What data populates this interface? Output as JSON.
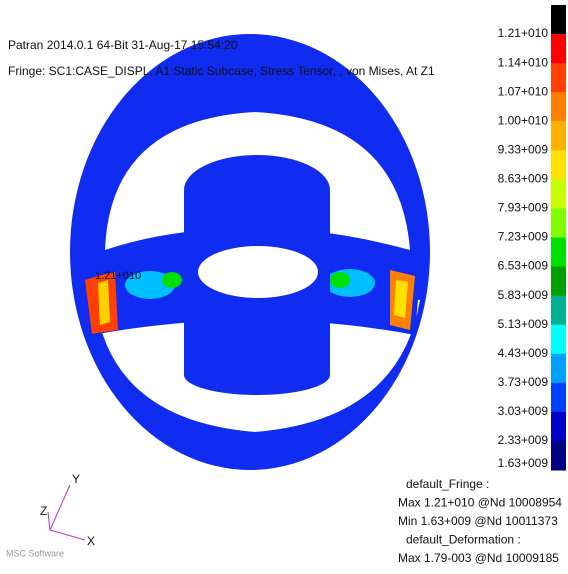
{
  "header": {
    "line1": "Patran 2014.0.1 64-Bit 31-Aug-17 15:54:20",
    "line2": "Fringe: SC1:CASE_DISPL, A1:Static Subcase, Stress Tensor, , von Mises, At Z1"
  },
  "legend": {
    "labels": [
      "1.21+010",
      "1.14+010",
      "1.07+010",
      "1.00+010",
      "9.33+009",
      "8.63+009",
      "7.93+009",
      "7.23+009",
      "6.53+009",
      "5.83+009",
      "5.13+009",
      "4.43+009",
      "3.73+009",
      "3.03+009",
      "2.33+009",
      "1.63+009"
    ],
    "colors": [
      "#000000",
      "#ff0000",
      "#ff4000",
      "#ff8000",
      "#ffb000",
      "#ffe000",
      "#c8ff00",
      "#80ff00",
      "#00e000",
      "#00a000",
      "#00b090",
      "#00ffff",
      "#00a0ff",
      "#0040ff",
      "#0000c8",
      "#000080"
    ]
  },
  "annotation": "1.21+010",
  "footer": [
    "default_Fringe :",
    "Max 1.21+010 @Nd 10008954",
    "Min 1.63+009 @Nd 10011373",
    "default_Deformation :",
    "Max 1.79-003 @Nd 10009185"
  ],
  "axes": {
    "x": "X",
    "y": "Y",
    "z": "Z"
  },
  "logo": "MSC Software"
}
